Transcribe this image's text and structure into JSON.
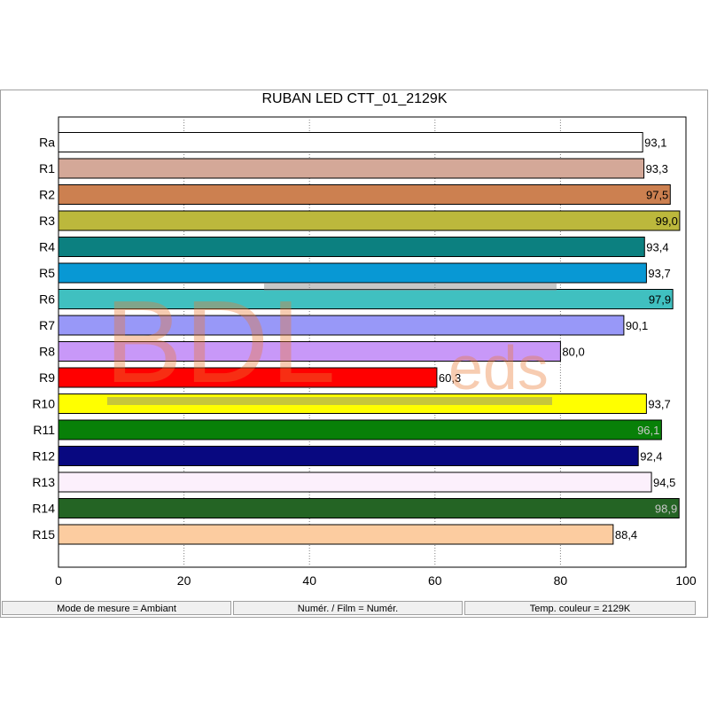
{
  "chart_data": {
    "type": "bar",
    "orientation": "horizontal",
    "title": "RUBAN LED CTT_01_2129K",
    "categories": [
      "Ra",
      "R1",
      "R2",
      "R3",
      "R4",
      "R5",
      "R6",
      "R7",
      "R8",
      "R9",
      "R10",
      "R11",
      "R12",
      "R13",
      "R14",
      "R15"
    ],
    "values": [
      93.1,
      93.3,
      97.5,
      99.0,
      93.4,
      93.7,
      97.9,
      90.1,
      80.0,
      60.3,
      93.7,
      96.1,
      92.4,
      94.5,
      98.9,
      88.4
    ],
    "value_labels": [
      "93,1",
      "93,3",
      "97,5",
      "99,0",
      "93,4",
      "93,7",
      "97,9",
      "90,1",
      "80,0",
      "60,3",
      "93,7",
      "96,1",
      "92,4",
      "94,5",
      "98,9",
      "88,4"
    ],
    "colors": [
      "#ffffff",
      "#d4a898",
      "#cc8050",
      "#bcb83c",
      "#0c8080",
      "#0898d4",
      "#40c0c0",
      "#9898f8",
      "#c898f8",
      "#ff0000",
      "#ffff00",
      "#088008",
      "#080880",
      "#fcf0fc",
      "#246424",
      "#fccca0"
    ],
    "label_inside": [
      false,
      false,
      true,
      true,
      false,
      false,
      true,
      false,
      false,
      false,
      false,
      true,
      false,
      false,
      true,
      false
    ],
    "xlim": [
      0,
      100
    ],
    "xticks": [
      0,
      20,
      40,
      60,
      80,
      100
    ],
    "grid": true,
    "xlabel": "",
    "ylabel": ""
  },
  "status_bar": {
    "mode": "Mode de mesure = Ambiant",
    "film": "Numér. / Film = Numér.",
    "temp": "Temp. couleur = 2129K"
  },
  "watermark": {
    "text_main": "BDL",
    "text_sub": "eds"
  }
}
